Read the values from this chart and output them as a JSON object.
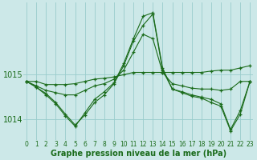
{
  "x": [
    0,
    1,
    2,
    3,
    4,
    5,
    6,
    7,
    8,
    9,
    10,
    11,
    12,
    13,
    14,
    15,
    16,
    17,
    18,
    19,
    20,
    21,
    22,
    23
  ],
  "series": [
    [
      1014.85,
      1014.85,
      1014.78,
      1014.78,
      1014.78,
      1014.8,
      1014.85,
      1014.9,
      1014.92,
      1014.95,
      1015.0,
      1015.05,
      1015.05,
      1015.05,
      1015.05,
      1015.05,
      1015.05,
      1015.05,
      1015.05,
      1015.08,
      1015.1,
      1015.1,
      1015.15,
      1015.2
    ],
    [
      1014.85,
      1014.75,
      1014.65,
      1014.6,
      1014.55,
      1014.55,
      1014.65,
      1014.75,
      1014.8,
      1014.9,
      1015.1,
      1015.5,
      1015.9,
      1015.8,
      1015.05,
      1014.8,
      1014.75,
      1014.7,
      1014.68,
      1014.68,
      1014.65,
      1014.68,
      1014.85,
      1014.85
    ],
    [
      1014.85,
      1014.72,
      1014.58,
      1014.38,
      1014.12,
      1013.88,
      1014.1,
      1014.38,
      1014.55,
      1014.8,
      1015.2,
      1015.75,
      1016.1,
      1016.35,
      1015.1,
      1014.68,
      1014.62,
      1014.55,
      1014.5,
      1014.45,
      1014.35,
      1013.78,
      1014.2,
      1014.85
    ],
    [
      1014.85,
      1014.72,
      1014.55,
      1014.35,
      1014.08,
      1013.85,
      1014.15,
      1014.45,
      1014.62,
      1014.82,
      1015.25,
      1015.8,
      1016.3,
      1016.38,
      1015.15,
      1014.68,
      1014.6,
      1014.52,
      1014.48,
      1014.38,
      1014.3,
      1013.75,
      1014.12,
      1014.85
    ]
  ],
  "line_color": "#1a6b1a",
  "bg_color": "#cce8e8",
  "grid_color": "#99cccc",
  "yticks": [
    1014,
    1015
  ],
  "ylim": [
    1013.55,
    1016.6
  ],
  "xlim": [
    -0.3,
    23.3
  ],
  "xlabel": "Graphe pression niveau de la mer (hPa)",
  "xtick_labels": [
    "0",
    "1",
    "2",
    "3",
    "4",
    "5",
    "6",
    "7",
    "8",
    "9",
    "10",
    "11",
    "12",
    "13",
    "14",
    "15",
    "16",
    "17",
    "18",
    "19",
    "20",
    "21",
    "22",
    "23"
  ],
  "marker": "+",
  "markersize": 3,
  "linewidth": 0.8
}
